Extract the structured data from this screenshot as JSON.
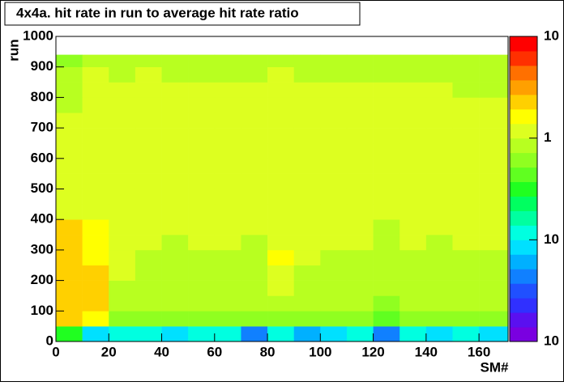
{
  "chart_data": {
    "type": "heatmap",
    "title": "4x4a. hit rate in run to average hit rate ratio",
    "xlabel": "SM#",
    "ylabel": "run",
    "xbins": [
      0,
      10,
      20,
      30,
      40,
      50,
      60,
      70,
      80,
      90,
      100,
      110,
      120,
      130,
      140,
      150,
      160,
      171
    ],
    "ybins": [
      0,
      50,
      100,
      150,
      200,
      250,
      300,
      350,
      400,
      450,
      500,
      550,
      600,
      650,
      700,
      750,
      800,
      850,
      900,
      940
    ],
    "values": [
      [
        0.3,
        0.08,
        0.1,
        0.1,
        0.08,
        0.1,
        0.1,
        0.05,
        0.1,
        0.06,
        0.08,
        0.1,
        0.05,
        0.1,
        0.08,
        0.1,
        0.08
      ],
      [
        2,
        1.5,
        0.7,
        0.6,
        0.6,
        0.6,
        0.7,
        0.6,
        0.7,
        0.6,
        0.7,
        0.6,
        0.5,
        0.6,
        0.6,
        0.6,
        0.6
      ],
      [
        2.5,
        2.2,
        0.9,
        0.8,
        0.8,
        0.8,
        0.9,
        0.8,
        0.9,
        0.8,
        0.8,
        0.8,
        0.7,
        0.8,
        0.8,
        0.8,
        0.8
      ],
      [
        2.5,
        2,
        0.9,
        0.9,
        0.8,
        0.9,
        0.9,
        0.8,
        1,
        0.9,
        0.9,
        0.9,
        0.8,
        0.9,
        0.9,
        0.9,
        0.9
      ],
      [
        2.2,
        2,
        1,
        0.9,
        0.9,
        0.9,
        0.9,
        0.9,
        1.2,
        0.9,
        0.9,
        0.9,
        0.8,
        0.9,
        0.9,
        0.9,
        0.9
      ],
      [
        2.2,
        1.8,
        1,
        0.9,
        0.9,
        0.9,
        0.9,
        0.9,
        1.5,
        1,
        0.9,
        0.9,
        0.8,
        0.9,
        0.9,
        0.9,
        0.9
      ],
      [
        2,
        1.8,
        1,
        1,
        0.9,
        1,
        1,
        0.9,
        1.2,
        1,
        1,
        1,
        0.9,
        1,
        0.9,
        1,
        1
      ],
      [
        2,
        1.6,
        1,
        1,
        1,
        1,
        1,
        1,
        1,
        1,
        1,
        1,
        0.9,
        1,
        1,
        1,
        1
      ],
      [
        1,
        1.2,
        1,
        1,
        1,
        1,
        1,
        1,
        1,
        1,
        1,
        1,
        1,
        1,
        1,
        1,
        1
      ],
      [
        1,
        1.2,
        1,
        1,
        1,
        1,
        1.1,
        1,
        1,
        1,
        1,
        1,
        1,
        1,
        1,
        1,
        1
      ],
      [
        1,
        1.3,
        1,
        1.1,
        1,
        1,
        1,
        1,
        1,
        1,
        1,
        1,
        1,
        1,
        1,
        1,
        1
      ],
      [
        1,
        1.3,
        1.1,
        1,
        1,
        1.1,
        1,
        1,
        1,
        1,
        1.1,
        1,
        1,
        1,
        1,
        1,
        1
      ],
      [
        1,
        1.2,
        1.1,
        1,
        1,
        1,
        1,
        1,
        1,
        1,
        1,
        1,
        1,
        1,
        1,
        1,
        1
      ],
      [
        1,
        1.2,
        1.2,
        1.1,
        1.1,
        1,
        1,
        1,
        1.1,
        1,
        1.1,
        1.1,
        1,
        1,
        1,
        1,
        1
      ],
      [
        1,
        1.1,
        1.1,
        1,
        1,
        1,
        1,
        1,
        1,
        1,
        1,
        1,
        1,
        1,
        1,
        1,
        1
      ],
      [
        0.9,
        1.1,
        1,
        1,
        1,
        1,
        1,
        1,
        1,
        1,
        1,
        1,
        1,
        1,
        1,
        1,
        1
      ],
      [
        0.9,
        1.1,
        1,
        1,
        1,
        1,
        1,
        1,
        1.3,
        1,
        1,
        1,
        1,
        1,
        1,
        0.9,
        0.9
      ],
      [
        0.8,
        1,
        0.9,
        1,
        0.9,
        0.9,
        0.8,
        0.9,
        1,
        0.9,
        0.9,
        0.9,
        0.9,
        0.9,
        0.9,
        0.9,
        0.9
      ],
      [
        0.7,
        0.9,
        0.8,
        0.8,
        0.8,
        0.8,
        0.8,
        0.8,
        0.8,
        0.8,
        0.8,
        0.8,
        0.8,
        0.8,
        0.8,
        0.8,
        0.8
      ]
    ],
    "xlim": [
      0,
      171
    ],
    "ylim": [
      0,
      1000
    ],
    "xticks": [
      0,
      20,
      40,
      60,
      80,
      100,
      120,
      140,
      160
    ],
    "yticks": [
      0,
      100,
      200,
      300,
      400,
      500,
      600,
      700,
      800,
      900,
      1000
    ],
    "zlim": [
      0.01,
      10
    ],
    "zscale": "log",
    "zticks": [
      {
        "value": 0.01,
        "label": "10"
      },
      {
        "value": 0.1,
        "label": "10"
      },
      1,
      10
    ],
    "palette": [
      "#7a00e0",
      "#5a10f0",
      "#3030ff",
      "#2050ff",
      "#1080ff",
      "#00b0ff",
      "#00e0ff",
      "#00ffe0",
      "#00ffa0",
      "#00ff60",
      "#20ff20",
      "#60ff20",
      "#90ff20",
      "#b8ff20",
      "#ddff20",
      "#ffff00",
      "#ffd000",
      "#ffa000",
      "#ff7000",
      "#ff3000",
      "#ff0000"
    ]
  }
}
